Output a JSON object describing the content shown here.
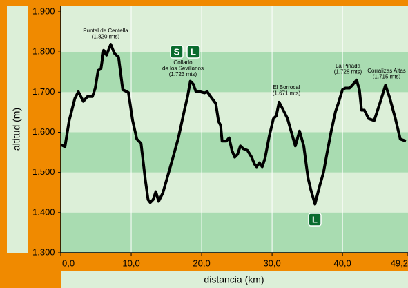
{
  "chart_data": {
    "type": "line",
    "x_label": "distancia (km)",
    "y_label": "altitud (m)",
    "color": "#000000",
    "x": [
      0,
      0.6,
      1.2,
      2.0,
      2.5,
      3.2,
      3.8,
      4.5,
      4.9,
      5.3,
      5.7,
      6.1,
      6.5,
      7.1,
      7.6,
      8.2,
      8.8,
      9.6,
      10.2,
      10.8,
      11.4,
      12.0,
      12.4,
      12.7,
      13.1,
      13.5,
      13.9,
      14.5,
      15.1,
      15.9,
      16.7,
      17.5,
      18.0,
      18.4,
      18.8,
      19.2,
      19.8,
      20.4,
      20.8,
      21.4,
      22.0,
      22.4,
      22.7,
      22.9,
      23.5,
      23.9,
      24.3,
      24.7,
      25.1,
      25.5,
      25.9,
      26.5,
      27.1,
      27.5,
      27.8,
      28.2,
      28.6,
      29.0,
      29.6,
      30.2,
      30.6,
      31.0,
      31.6,
      32.2,
      32.7,
      33.3,
      33.9,
      34.5,
      35.1,
      35.5,
      36.1,
      36.7,
      37.3,
      37.8,
      38.4,
      39.0,
      39.4,
      40.0,
      40.4,
      41.0,
      41.4,
      42.0,
      42.4,
      42.7,
      43.1,
      43.7,
      44.5,
      45.3,
      46.1,
      46.7,
      47.5,
      48.2,
      49.0
    ],
    "values": [
      1569,
      1564,
      1629,
      1684,
      1701,
      1677,
      1689,
      1689,
      1710,
      1754,
      1758,
      1804,
      1792,
      1819,
      1797,
      1787,
      1706,
      1699,
      1629,
      1583,
      1572,
      1483,
      1432,
      1425,
      1432,
      1452,
      1428,
      1449,
      1486,
      1535,
      1586,
      1651,
      1689,
      1727,
      1720,
      1701,
      1701,
      1698,
      1701,
      1686,
      1672,
      1627,
      1617,
      1578,
      1578,
      1586,
      1555,
      1538,
      1545,
      1566,
      1559,
      1555,
      1538,
      1521,
      1514,
      1524,
      1514,
      1535,
      1590,
      1634,
      1641,
      1675,
      1655,
      1634,
      1603,
      1566,
      1603,
      1566,
      1487,
      1457,
      1421,
      1463,
      1500,
      1548,
      1603,
      1651,
      1672,
      1706,
      1710,
      1710,
      1717,
      1730,
      1706,
      1655,
      1655,
      1634,
      1629,
      1672,
      1717,
      1686,
      1634,
      1583,
      1578
    ],
    "xlim": [
      0,
      49.2
    ],
    "ylim": [
      1300,
      1900
    ],
    "xticks": [
      {
        "value": 0,
        "label": "0,0"
      },
      {
        "value": 10,
        "label": "10,0"
      },
      {
        "value": 20,
        "label": "20,0"
      },
      {
        "value": 30,
        "label": "30,0"
      },
      {
        "value": 40,
        "label": "40,0"
      },
      {
        "value": 49.2,
        "label": "49,2"
      }
    ],
    "yticks": [
      {
        "value": 1300,
        "label": "1.300"
      },
      {
        "value": 1400,
        "label": "1.400"
      },
      {
        "value": 1500,
        "label": "1.500"
      },
      {
        "value": 1600,
        "label": "1.600"
      },
      {
        "value": 1700,
        "label": "1.700"
      },
      {
        "value": 1800,
        "label": "1.800"
      },
      {
        "value": 1900,
        "label": "1.900"
      }
    ],
    "annotations": [
      [
        "Puntal de Centella",
        "(1.820 mts)"
      ],
      [
        "Collado",
        "de los Sevillanos",
        "(1.723 mts)"
      ],
      [
        "El Borrocal",
        "(1.671 mts)"
      ],
      [
        "La Pinada",
        "(1.728 mts)"
      ],
      [
        "Corralizas Altas",
        "(1.715 mts)"
      ]
    ],
    "badges": [
      "S",
      "L",
      "L"
    ]
  }
}
